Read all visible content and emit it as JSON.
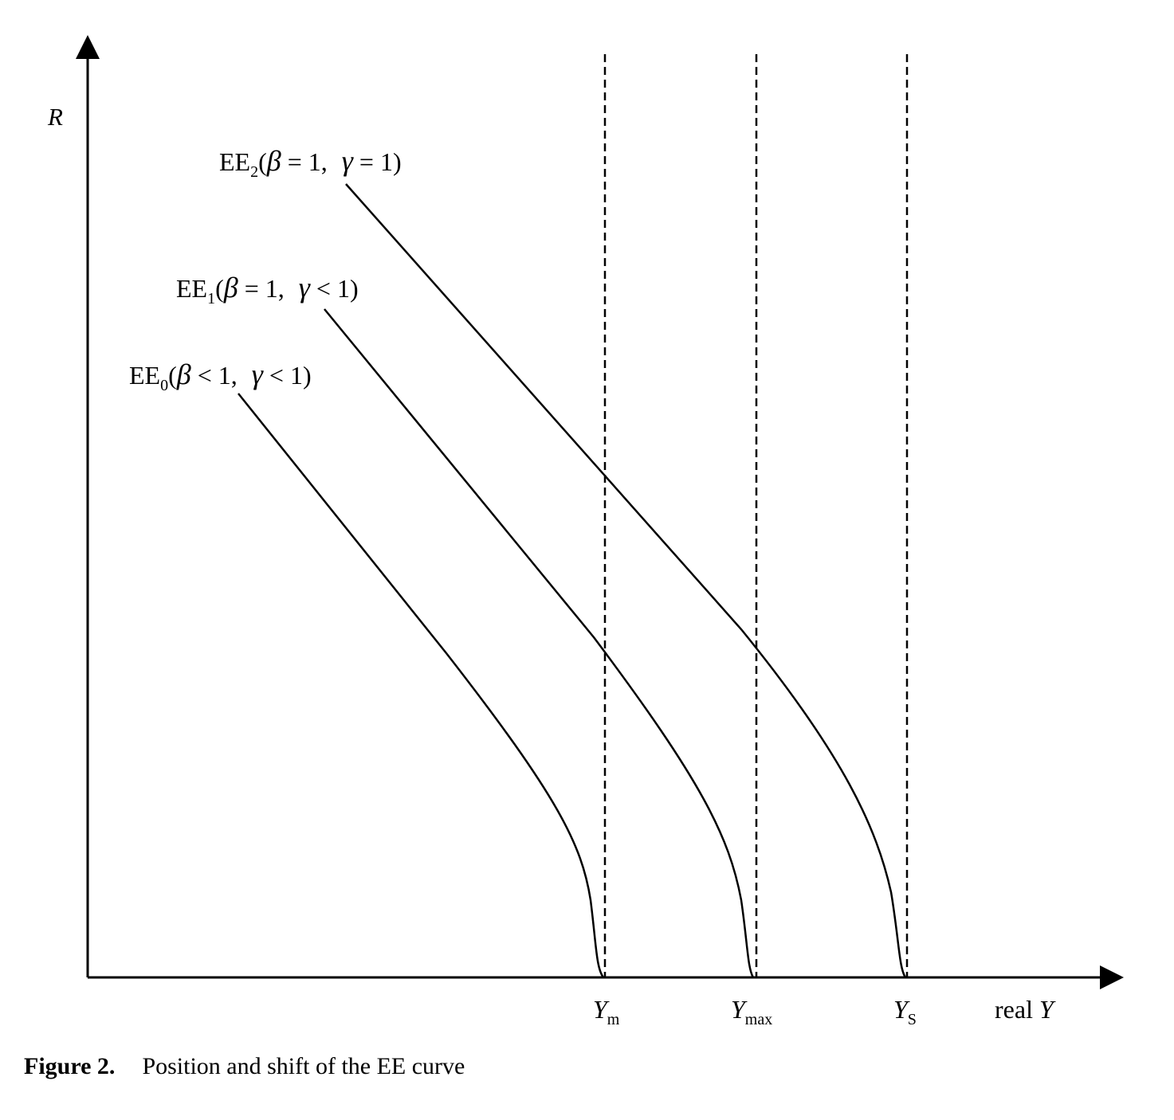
{
  "axes": {
    "y_label": "R",
    "x_label_text": "real ",
    "x_label_var": "Y"
  },
  "markers": [
    {
      "base": "Y",
      "sub": "m"
    },
    {
      "base": "Y",
      "sub": "max"
    },
    {
      "base": "Y",
      "sub": "S"
    }
  ],
  "curves": [
    {
      "name_base": "EE",
      "name_sub": "0",
      "beta_sym": "β",
      "beta_rel": "< 1,",
      "gamma_sym": "γ",
      "gamma_rel": "< 1)"
    },
    {
      "name_base": "EE",
      "name_sub": "1",
      "beta_sym": "β",
      "beta_rel": "= 1,",
      "gamma_sym": "γ",
      "gamma_rel": "< 1)"
    },
    {
      "name_base": "EE",
      "name_sub": "2",
      "beta_sym": "β",
      "beta_rel": "= 1,",
      "gamma_sym": "γ",
      "gamma_rel": "= 1)"
    }
  ],
  "caption": {
    "number": "Figure 2.",
    "text": "Position and shift of the EE curve"
  }
}
